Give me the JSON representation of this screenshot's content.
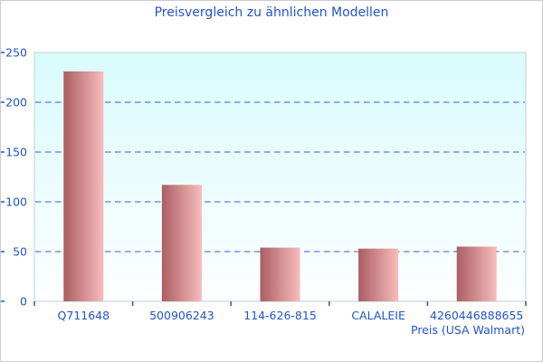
{
  "window": {
    "background": "#ffffff",
    "border_color": "#cccccc"
  },
  "chart_data": {
    "type": "bar",
    "title": "Preisvergleich zu ähnlichen Modellen",
    "xlabel": "Preis (USA Walmart)",
    "ylabel": "",
    "categories": [
      "Q711648",
      "500906243",
      "114-626-815",
      "CALALEIE",
      "4260446888655"
    ],
    "values": [
      231,
      117,
      54,
      53,
      55
    ],
    "ylim": [
      0,
      250
    ],
    "yticks": [
      0,
      50,
      100,
      150,
      200,
      250
    ],
    "grid": "horizontal-dashed",
    "legend_position": "none",
    "colors": {
      "text": "#2255c8",
      "grid": "#3060d0",
      "bar_gradient_left": "#ab5e62",
      "bar_gradient_right": "#f8bcbc",
      "plot_bg_top": "#d9fbfc",
      "plot_bg_bottom": "#fdfeff",
      "plot_border": "#c6d8da"
    }
  }
}
